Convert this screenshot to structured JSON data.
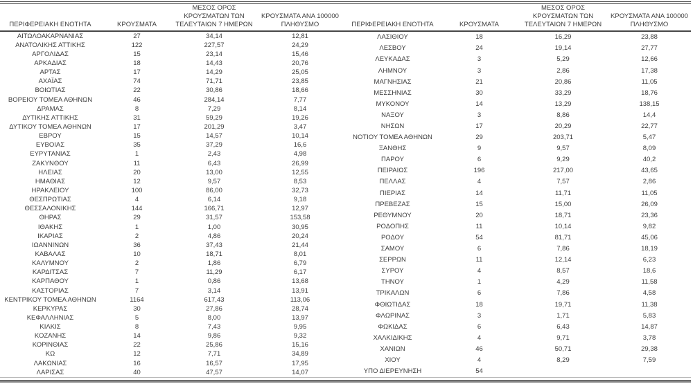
{
  "colors": {
    "text": "#3d3d3d",
    "top_rule": "#3a3a3a",
    "header_rule": "#464646",
    "bottom_band": "#878787",
    "background": "#ffffff"
  },
  "headers": {
    "region": "ΠΕΡΙΦΕΡΕΙΑΚΗ ΕΝΟΤΗΤΑ",
    "cases": "ΚΡΟΥΣΜΑΤΑ",
    "avg7": "ΜΕΣΟΣ ΟΡΟΣ\nΚΡΟΥΣΜΑΤΩΝ ΤΩΝ\nΤΕΛΕΥΤΑΙΩΝ 7 ΗΜΕΡΩΝ",
    "per100k": "ΚΡΟΥΣΜΑΤΑ ΑΝΑ 100000\nΠΛΗΘΥΣΜΟ"
  },
  "tables": {
    "left": {
      "rows": [
        [
          "ΑΙΤΩΛΟΑΚΑΡΝΑΝΙΑΣ",
          "27",
          "34,14",
          "12,81"
        ],
        [
          "ΑΝΑΤΟΛΙΚΗΣ ΑΤΤΙΚΗΣ",
          "122",
          "227,57",
          "24,29"
        ],
        [
          "ΑΡΓΟΛΙΔΑΣ",
          "15",
          "23,14",
          "15,46"
        ],
        [
          "ΑΡΚΑΔΙΑΣ",
          "18",
          "14,43",
          "20,76"
        ],
        [
          "ΑΡΤΑΣ",
          "17",
          "14,29",
          "25,05"
        ],
        [
          "ΑΧΑΪΑΣ",
          "74",
          "71,71",
          "23,85"
        ],
        [
          "ΒΟΙΩΤΙΑΣ",
          "22",
          "30,86",
          "18,66"
        ],
        [
          "ΒΟΡΕΙΟΥ ΤΟΜΕΑ ΑΘΗΝΩΝ",
          "46",
          "284,14",
          "7,77"
        ],
        [
          "ΔΡΑΜΑΣ",
          "8",
          "7,29",
          "8,14"
        ],
        [
          "ΔΥΤΙΚΗΣ ΑΤΤΙΚΗΣ",
          "31",
          "59,29",
          "19,26"
        ],
        [
          "ΔΥΤΙΚΟΥ ΤΟΜΕΑ ΑΘΗΝΩΝ",
          "17",
          "201,29",
          "3,47"
        ],
        [
          "ΕΒΡΟΥ",
          "15",
          "14,57",
          "10,14"
        ],
        [
          "ΕΥΒΟΙΑΣ",
          "35",
          "37,29",
          "16,6"
        ],
        [
          "ΕΥΡΥΤΑΝΙΑΣ",
          "1",
          "2,43",
          "4,98"
        ],
        [
          "ΖΑΚΥΝΘΟΥ",
          "11",
          "6,43",
          "26,99"
        ],
        [
          "ΗΛΕΙΑΣ",
          "20",
          "13,00",
          "12,55"
        ],
        [
          "ΗΜΑΘΙΑΣ",
          "12",
          "9,57",
          "8,53"
        ],
        [
          "ΗΡΑΚΛΕΙΟΥ",
          "100",
          "86,00",
          "32,73"
        ],
        [
          "ΘΕΣΠΡΩΤΙΑΣ",
          "4",
          "6,14",
          "9,18"
        ],
        [
          "ΘΕΣΣΑΛΟΝΙΚΗΣ",
          "144",
          "166,71",
          "12,97"
        ],
        [
          "ΘΗΡΑΣ",
          "29",
          "31,57",
          "153,58"
        ],
        [
          "ΙΘΑΚΗΣ",
          "1",
          "1,00",
          "30,95"
        ],
        [
          "ΙΚΑΡΙΑΣ",
          "2",
          "4,86",
          "20,24"
        ],
        [
          "ΙΩΑΝΝΙΝΩΝ",
          "36",
          "37,43",
          "21,44"
        ],
        [
          "ΚΑΒΑΛΑΣ",
          "10",
          "18,71",
          "8,01"
        ],
        [
          "ΚΑΛΥΜΝΟΥ",
          "2",
          "1,86",
          "6,79"
        ],
        [
          "ΚΑΡΔΙΤΣΑΣ",
          "7",
          "11,29",
          "6,17"
        ],
        [
          "ΚΑΡΠΑΘΟΥ",
          "1",
          "0,86",
          "13,68"
        ],
        [
          "ΚΑΣΤΟΡΙΑΣ",
          "7",
          "3,14",
          "13,91"
        ],
        [
          "ΚΕΝΤΡΙΚΟΥ ΤΟΜΕΑ ΑΘΗΝΩΝ",
          "1164",
          "617,43",
          "113,06"
        ],
        [
          "ΚΕΡΚΥΡΑΣ",
          "30",
          "27,86",
          "28,74"
        ],
        [
          "ΚΕΦΑΛΛΗΝΙΑΣ",
          "5",
          "8,00",
          "13,97"
        ],
        [
          "ΚΙΛΚΙΣ",
          "8",
          "7,43",
          "9,95"
        ],
        [
          "ΚΟΖΑΝΗΣ",
          "14",
          "9,86",
          "9,32"
        ],
        [
          "ΚΟΡΙΝΘΙΑΣ",
          "22",
          "25,86",
          "15,16"
        ],
        [
          "ΚΩ",
          "12",
          "7,71",
          "34,89"
        ],
        [
          "ΛΑΚΩΝΙΑΣ",
          "16",
          "16,57",
          "17,95"
        ],
        [
          "ΛΑΡΙΣΑΣ",
          "40",
          "47,57",
          "14,07"
        ]
      ]
    },
    "right": {
      "rows": [
        [
          "ΛΑΣΙΘΙΟΥ",
          "18",
          "16,29",
          "23,88"
        ],
        [
          "ΛΕΣΒΟΥ",
          "24",
          "19,14",
          "27,77"
        ],
        [
          "ΛΕΥΚΑΔΑΣ",
          "3",
          "5,29",
          "12,66"
        ],
        [
          "ΛΗΜΝΟΥ",
          "3",
          "2,86",
          "17,38"
        ],
        [
          "ΜΑΓΝΗΣΙΑΣ",
          "21",
          "20,86",
          "11,05"
        ],
        [
          "ΜΕΣΣΗΝΙΑΣ",
          "30",
          "33,29",
          "18,76"
        ],
        [
          "ΜΥΚΟΝΟΥ",
          "14",
          "13,29",
          "138,15"
        ],
        [
          "ΝΑΞΟΥ",
          "3",
          "8,86",
          "14,4"
        ],
        [
          "ΝΗΣΩΝ",
          "17",
          "20,29",
          "22,77"
        ],
        [
          "ΝΟΤΙΟΥ ΤΟΜΕΑ ΑΘΗΝΩΝ",
          "29",
          "203,71",
          "5,47"
        ],
        [
          "ΞΑΝΘΗΣ",
          "9",
          "9,57",
          "8,09"
        ],
        [
          "ΠΑΡΟΥ",
          "6",
          "9,29",
          "40,2"
        ],
        [
          "ΠΕΙΡΑΙΩΣ",
          "196",
          "217,00",
          "43,65"
        ],
        [
          "ΠΕΛΛΑΣ",
          "4",
          "7,57",
          "2,86"
        ],
        [
          "ΠΙΕΡΙΑΣ",
          "14",
          "11,71",
          "11,05"
        ],
        [
          "ΠΡΕΒΕΖΑΣ",
          "15",
          "15,00",
          "26,09"
        ],
        [
          "ΡΕΘΥΜΝΟΥ",
          "20",
          "18,71",
          "23,36"
        ],
        [
          "ΡΟΔΟΠΗΣ",
          "11",
          "10,14",
          "9,82"
        ],
        [
          "ΡΟΔΟΥ",
          "54",
          "81,71",
          "45,06"
        ],
        [
          "ΣΑΜΟΥ",
          "6",
          "7,86",
          "18,19"
        ],
        [
          "ΣΕΡΡΩΝ",
          "11",
          "12,14",
          "6,23"
        ],
        [
          "ΣΥΡΟΥ",
          "4",
          "8,57",
          "18,6"
        ],
        [
          "ΤΗΝΟΥ",
          "1",
          "4,29",
          "11,58"
        ],
        [
          "ΤΡΙΚΑΛΩΝ",
          "6",
          "7,86",
          "4,58"
        ],
        [
          "ΦΘΙΩΤΙΔΑΣ",
          "18",
          "19,71",
          "11,38"
        ],
        [
          "ΦΛΩΡΙΝΑΣ",
          "3",
          "1,71",
          "5,83"
        ],
        [
          "ΦΩΚΙΔΑΣ",
          "6",
          "6,43",
          "14,87"
        ],
        [
          "ΧΑΛΚΙΔΙΚΗΣ",
          "4",
          "9,71",
          "3,78"
        ],
        [
          "ΧΑΝΙΩΝ",
          "46",
          "50,71",
          "29,38"
        ],
        [
          "ΧΙΟΥ",
          "4",
          "8,29",
          "7,59"
        ],
        [
          "ΥΠΟ ΔΙΕΡΕΥΝΗΣΗ",
          "54",
          "",
          ""
        ]
      ]
    }
  }
}
